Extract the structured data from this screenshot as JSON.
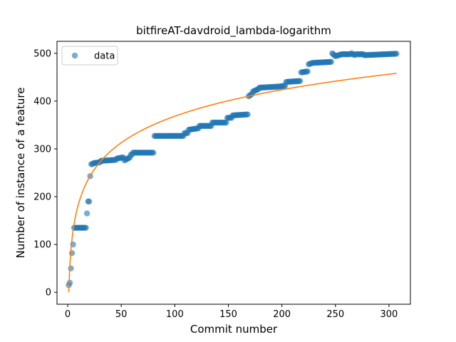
{
  "chart_data": {
    "type": "scatter",
    "title": "bitfireAT-davdroid_lambda-logarithm",
    "xlabel": "Commit number",
    "ylabel": "Number of instance of a feature",
    "xlim": [
      -10,
      320
    ],
    "ylim": [
      -25,
      525
    ],
    "xticks": [
      0,
      50,
      100,
      150,
      200,
      250,
      300
    ],
    "yticks": [
      0,
      100,
      200,
      300,
      400,
      500
    ],
    "legend": {
      "position": "top-left",
      "entries": [
        "data"
      ]
    },
    "colors": {
      "data": "#1f77b4",
      "fit": "#ff7f0e"
    },
    "series": [
      {
        "name": "data",
        "kind": "scatter",
        "segments": [
          [
            1,
            15,
            1,
            15
          ],
          [
            2,
            20,
            2,
            20
          ],
          [
            3,
            50,
            3,
            50
          ],
          [
            4,
            82,
            4,
            82
          ],
          [
            5,
            100,
            5,
            100
          ],
          [
            6,
            135,
            17,
            135
          ],
          [
            18,
            165,
            18,
            165
          ],
          [
            19,
            190,
            19,
            190
          ],
          [
            20,
            190,
            20,
            190
          ],
          [
            21,
            243,
            21,
            243
          ],
          [
            22,
            268,
            23,
            268
          ],
          [
            24,
            270,
            30,
            272
          ],
          [
            31,
            275,
            45,
            277
          ],
          [
            46,
            280,
            52,
            282
          ],
          [
            53,
            276,
            58,
            282
          ],
          [
            59,
            288,
            60,
            288
          ],
          [
            61,
            292,
            80,
            292
          ],
          [
            81,
            327,
            108,
            327
          ],
          [
            109,
            333,
            112,
            333
          ],
          [
            113,
            340,
            122,
            343
          ],
          [
            123,
            348,
            134,
            348
          ],
          [
            135,
            355,
            148,
            355
          ],
          [
            149,
            365,
            153,
            365
          ],
          [
            154,
            370,
            168,
            372
          ],
          [
            169,
            410,
            172,
            415
          ],
          [
            173,
            420,
            178,
            425
          ],
          [
            179,
            428,
            195,
            430
          ],
          [
            196,
            430,
            203,
            432
          ],
          [
            204,
            440,
            217,
            442
          ],
          [
            218,
            460,
            224,
            462
          ],
          [
            225,
            477,
            229,
            480
          ],
          [
            230,
            480,
            246,
            482
          ],
          [
            247,
            500,
            249,
            496
          ],
          [
            250,
            494,
            256,
            498
          ],
          [
            257,
            498,
            264,
            498
          ],
          [
            265,
            500,
            268,
            496
          ],
          [
            269,
            498,
            276,
            498
          ],
          [
            277,
            496,
            307,
            499
          ]
        ]
      },
      {
        "name": "fit",
        "kind": "line",
        "model": "logarithm",
        "x_range": [
          1,
          307
        ],
        "y_at_x1": 0,
        "y_at_x307": 458
      }
    ]
  }
}
